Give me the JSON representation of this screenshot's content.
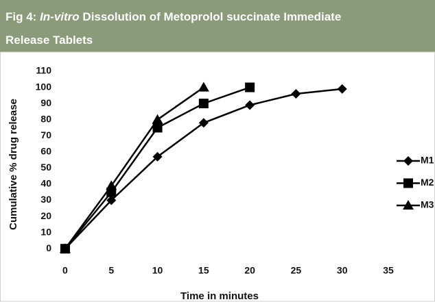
{
  "chart_data": {
    "type": "line",
    "title_prefix": "Fig 4:",
    "title_italic": "In-vitro",
    "title_rest": "Dissolution of Metoprolol succinate Immediate",
    "title_line2": "Release Tablets",
    "x_label": "Time in minutes",
    "y_label": "Cumulative %  drug release",
    "x": [
      0,
      5,
      10,
      15,
      20,
      25,
      30
    ],
    "series": [
      {
        "name": "M1",
        "color": "#000000",
        "marker": "diamond",
        "values": [
          0,
          30,
          57,
          78,
          89,
          96,
          99
        ]
      },
      {
        "name": "M2",
        "color": "#000000",
        "marker": "square",
        "values": [
          0,
          35,
          75,
          90,
          100,
          null,
          null
        ]
      },
      {
        "name": "M3",
        "color": "#000000",
        "marker": "triangle",
        "values": [
          0,
          39,
          80,
          100,
          null,
          null,
          null
        ]
      }
    ],
    "xlim": [
      -1,
      35
    ],
    "xticks": [
      0,
      5,
      10,
      15,
      20,
      25,
      30,
      35
    ],
    "ylim": [
      -5,
      110
    ],
    "yticks": [
      0,
      10,
      20,
      30,
      40,
      50,
      60,
      70,
      80,
      90,
      100,
      110
    ],
    "grid": false,
    "legend": "right"
  }
}
